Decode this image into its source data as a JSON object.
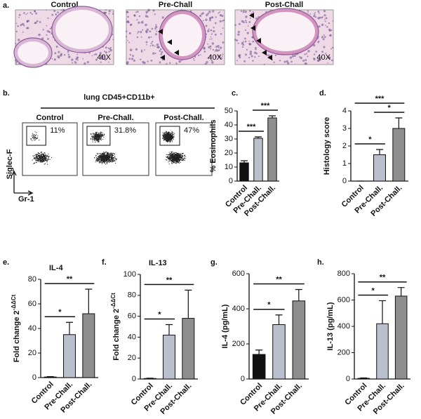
{
  "panel_a": {
    "label": "a.",
    "images": [
      {
        "title": "Control",
        "magnification": "40X"
      },
      {
        "title": "Pre-Chall",
        "magnification": "40X"
      },
      {
        "title": "Post-Chall",
        "magnification": "40X"
      }
    ]
  },
  "panel_b": {
    "label": "b.",
    "title": "lung CD45+CD11b+",
    "y_label": "Siglec-F",
    "x_label": "Gr-1",
    "plots": [
      {
        "title": "Control",
        "percent": "11%"
      },
      {
        "title": "Pre-Chall.",
        "percent": "31.8%"
      },
      {
        "title": "Post-Chall.",
        "percent": "47%"
      }
    ]
  },
  "chart_data": [
    {
      "type": "bar",
      "label": "c.",
      "y_label": "% Eosinophils",
      "categories": [
        "Control",
        "Pre-Chall.",
        "Post-Chall."
      ],
      "values": [
        13,
        30.5,
        45
      ],
      "errors": [
        1.5,
        1,
        1.5
      ],
      "colors": [
        "#111111",
        "#b9c0cc",
        "#8e8e8e"
      ],
      "ylim": [
        0,
        50
      ],
      "yticks": [
        0,
        10,
        20,
        30,
        40,
        50
      ],
      "significance": [
        {
          "pair": [
            0,
            1
          ],
          "label": "***"
        },
        {
          "pair": [
            1,
            2
          ],
          "label": "***"
        }
      ]
    },
    {
      "type": "bar",
      "label": "d.",
      "y_label": "Histology  score",
      "categories": [
        "Control",
        "Pre-Chall.",
        "Post-Chall."
      ],
      "values": [
        0,
        1.5,
        3
      ],
      "errors": [
        0,
        0.3,
        0.6
      ],
      "colors": [
        "#ffffff",
        "#b9c0cc",
        "#8e8e8e"
      ],
      "ylim": [
        0,
        4
      ],
      "yticks": [
        0,
        1,
        2,
        3,
        4
      ],
      "significance": [
        {
          "pair": [
            0,
            1
          ],
          "label": "*"
        },
        {
          "pair": [
            1,
            2
          ],
          "label": "*"
        },
        {
          "pair": [
            0,
            2
          ],
          "label": "***"
        }
      ]
    },
    {
      "type": "bar",
      "label": "e.",
      "title": "IL-4",
      "y_label": "Fold change 2",
      "y_label_sup": "-ΔΔCt",
      "categories": [
        "Control",
        "Pre-Chall.",
        "Post-Chall."
      ],
      "values": [
        0.5,
        35,
        52
      ],
      "errors": [
        0.3,
        10,
        20
      ],
      "colors": [
        "#ffffff",
        "#b9c0cc",
        "#8e8e8e"
      ],
      "ylim": [
        0,
        80
      ],
      "yticks": [
        0,
        20,
        40,
        60,
        80
      ],
      "significance": [
        {
          "pair": [
            0,
            1
          ],
          "label": "*"
        },
        {
          "pair": [
            0,
            2
          ],
          "label": "**"
        }
      ]
    },
    {
      "type": "bar",
      "label": "f.",
      "title": "IL-13",
      "y_label": "Fold change 2",
      "y_label_sup": "-ΔΔCt",
      "categories": [
        "Control",
        "Pre-Chall.",
        "Post-Chall."
      ],
      "values": [
        0.5,
        42,
        58
      ],
      "errors": [
        0.3,
        10,
        27
      ],
      "colors": [
        "#ffffff",
        "#b9c0cc",
        "#8e8e8e"
      ],
      "ylim": [
        0,
        100
      ],
      "yticks": [
        0,
        20,
        40,
        60,
        80,
        100
      ],
      "significance": [
        {
          "pair": [
            0,
            1
          ],
          "label": "*"
        },
        {
          "pair": [
            0,
            2
          ],
          "label": "**"
        }
      ]
    },
    {
      "type": "bar",
      "label": "g.",
      "y_label": "IL-4 (pg/mL)",
      "categories": [
        "Control",
        "Pre-Chall.",
        "Post-Chall."
      ],
      "values": [
        140,
        310,
        445
      ],
      "errors": [
        25,
        55,
        65
      ],
      "colors": [
        "#111111",
        "#b9c0cc",
        "#8e8e8e"
      ],
      "ylim": [
        0,
        600
      ],
      "yticks": [
        0,
        200,
        400,
        600
      ],
      "significance": [
        {
          "pair": [
            0,
            1
          ],
          "label": "*"
        },
        {
          "pair": [
            0,
            2
          ],
          "label": "**"
        }
      ]
    },
    {
      "type": "bar",
      "label": "h.",
      "y_label": "IL-13 (pg/mL)",
      "categories": [
        "Control",
        "Pre-Chall.",
        "Post-Chall."
      ],
      "values": [
        5,
        420,
        630
      ],
      "errors": [
        3,
        175,
        65
      ],
      "colors": [
        "#ffffff",
        "#b9c0cc",
        "#8e8e8e"
      ],
      "ylim": [
        0,
        800
      ],
      "yticks": [
        0,
        200,
        400,
        600,
        800
      ],
      "significance": [
        {
          "pair": [
            0,
            1
          ],
          "label": "*"
        },
        {
          "pair": [
            0,
            2
          ],
          "label": "**"
        }
      ]
    }
  ]
}
